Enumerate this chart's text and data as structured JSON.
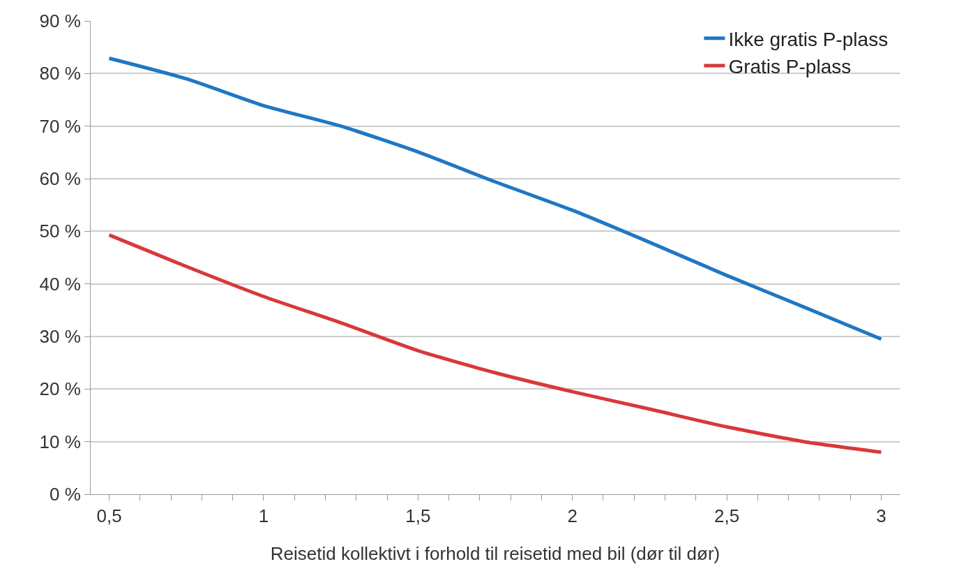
{
  "chart_data": {
    "type": "line",
    "xlabel": "Reisetid kollektivt i forhold til reisetid med bil (dør til dør)",
    "x": [
      0.5,
      0.75,
      1,
      1.25,
      1.5,
      1.75,
      2,
      2.25,
      2.5,
      2.75,
      3
    ],
    "series": [
      {
        "name": "Ikke gratis P-plass",
        "color": "#1f77c4",
        "values": [
          82.9,
          79,
          73.9,
          70,
          65.1,
          59.4,
          54,
          47.9,
          41.6,
          35.6,
          29.5
        ]
      },
      {
        "name": "Gratis P-plass",
        "color": "#d9383a",
        "values": [
          49.3,
          43.3,
          37.6,
          32.6,
          27.3,
          23.1,
          19.5,
          16.2,
          12.8,
          10,
          8
        ]
      }
    ],
    "xlim": [
      0.44,
      3.06
    ],
    "xticks": [
      {
        "value": 0.5,
        "label": "0,5"
      },
      {
        "value": 0.6,
        "label": null
      },
      {
        "value": 0.7,
        "label": null
      },
      {
        "value": 0.8,
        "label": null
      },
      {
        "value": 0.9,
        "label": null
      },
      1,
      {
        "value": 1.1,
        "label": null
      },
      {
        "value": 1.2,
        "label": null
      },
      {
        "value": 1.3,
        "label": null
      },
      {
        "value": 1.4,
        "label": null
      },
      {
        "value": 1.5,
        "label": "1,5"
      },
      {
        "value": 1.6,
        "label": null
      },
      {
        "value": 1.7,
        "label": null
      },
      {
        "value": 1.8,
        "label": null
      },
      {
        "value": 1.9,
        "label": null
      },
      2,
      {
        "value": 2.1,
        "label": null
      },
      {
        "value": 2.2,
        "label": null
      },
      {
        "value": 2.3,
        "label": null
      },
      {
        "value": 2.4,
        "label": null
      },
      {
        "value": 2.5,
        "label": "2,5"
      },
      {
        "value": 2.6,
        "label": null
      },
      {
        "value": 2.7,
        "label": null
      },
      {
        "value": 2.8,
        "label": null
      },
      {
        "value": 2.9,
        "label": null
      },
      3
    ],
    "ylim": [
      0,
      90
    ],
    "yticks": [
      {
        "value": 0,
        "label": "0 %"
      },
      {
        "value": 10,
        "label": "10 %"
      },
      {
        "value": 20,
        "label": "20 %"
      },
      {
        "value": 30,
        "label": "30 %"
      },
      {
        "value": 40,
        "label": "40 %"
      },
      {
        "value": 50,
        "label": "50 %"
      },
      {
        "value": 60,
        "label": "60 %"
      },
      {
        "value": 70,
        "label": "70 %"
      },
      {
        "value": 80,
        "label": "80 %"
      },
      {
        "value": 90,
        "label": "90 %"
      }
    ],
    "grid": "y",
    "legend": "top right",
    "marker": "none",
    "line_style": "solid"
  }
}
